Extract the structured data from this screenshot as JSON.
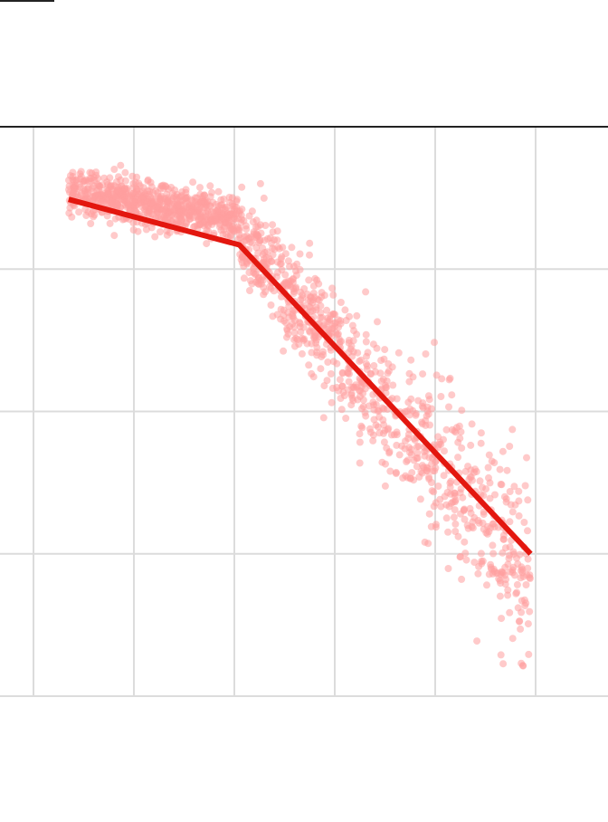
{
  "chart_data": {
    "type": "scatter",
    "title": "",
    "xlabel": "",
    "ylabel": "",
    "xlim": [
      0,
      6
    ],
    "ylim": [
      0,
      4
    ],
    "grid": true,
    "legend": "none",
    "colors": {
      "points": "#ff9e9e",
      "trend_line": "#e3170f",
      "grid": "#dcdcdc",
      "axis_top": "#222222",
      "axis_bottom": "#dcdcdc"
    },
    "series": [
      {
        "type": "line",
        "x": [
          0.35,
          2.05,
          4.95
        ],
        "y": [
          3.49,
          3.17,
          1.0
        ]
      },
      {
        "type": "scatter",
        "point_count": 1600,
        "x_range": [
          0.35,
          4.95
        ],
        "clusters": [
          {
            "x0": 0.35,
            "x1": 2.05,
            "y_center_start": 3.55,
            "y_center_end": 3.35,
            "spread": 0.32
          },
          {
            "x0": 2.05,
            "x1": 4.95,
            "y_center_start": 3.25,
            "y_center_end": 0.85,
            "spread": 0.75
          }
        ]
      }
    ]
  }
}
